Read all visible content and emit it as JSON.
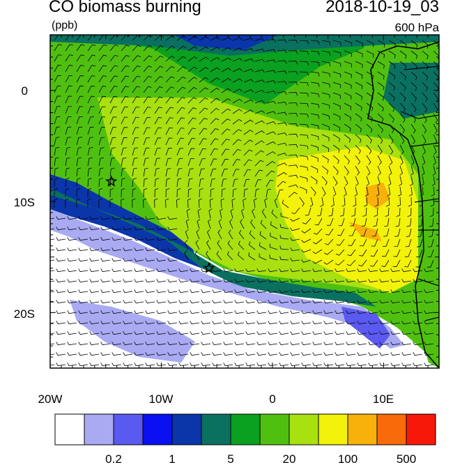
{
  "header": {
    "title": "CO biomass burning",
    "units": "(ppb)",
    "datetime": "2018-10-19_03",
    "level": "600 hPa"
  },
  "axes": {
    "x_ticks": [
      "20W",
      "10W",
      "0",
      "10E"
    ],
    "y_ticks": [
      "0",
      "10S",
      "20S"
    ]
  },
  "colorbar": {
    "colors": [
      "#ffffff",
      "#a9aaf2",
      "#5a5af0",
      "#0a10f0",
      "#0a36aa",
      "#0a7060",
      "#0aa020",
      "#50c010",
      "#a8e010",
      "#f2f20a",
      "#f8b00a",
      "#f86a0a",
      "#f8180a"
    ],
    "labels": [
      "0.2",
      "1",
      "5",
      "20",
      "100",
      "500"
    ]
  },
  "markers": [
    {
      "name": "star-marker-north",
      "lon": -14.5,
      "lat": -8.2
    },
    {
      "name": "star-marker-south",
      "lon": -5.7,
      "lat": -16.0
    }
  ]
}
